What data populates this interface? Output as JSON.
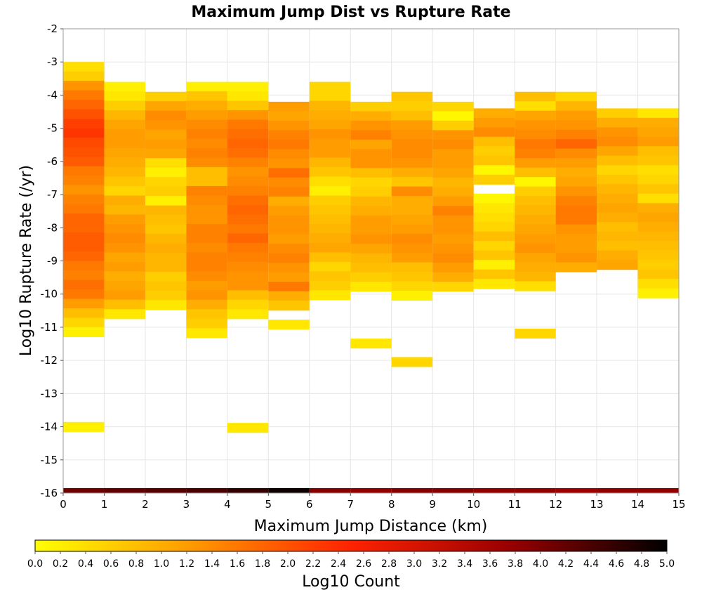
{
  "chart_data": {
    "type": "heatmap",
    "title": "Maximum Jump Dist vs Rupture Rate",
    "xlabel": "Maximum Jump Distance (km)",
    "ylabel": "Log10 Rupture Rate (/yr)",
    "xlim": [
      0,
      15
    ],
    "ylim": [
      -16,
      -2
    ],
    "x_ticks": [
      "0",
      "1",
      "2",
      "3",
      "4",
      "5",
      "6",
      "7",
      "8",
      "9",
      "10",
      "11",
      "12",
      "13",
      "14",
      "15"
    ],
    "y_ticks": [
      "-2",
      "-3",
      "-4",
      "-5",
      "-6",
      "-7",
      "-8",
      "-9",
      "-10",
      "-11",
      "-12",
      "-13",
      "-14",
      "-15",
      "-16"
    ],
    "x_bin_width": 1,
    "y_bin_height": 0.2857,
    "grid": true,
    "colorbar": {
      "label": "Log10 Count",
      "min": 0.0,
      "max": 5.0,
      "ticks": [
        "0.0",
        "0.2",
        "0.4",
        "0.6",
        "0.8",
        "1.0",
        "1.2",
        "1.4",
        "1.6",
        "1.8",
        "2.0",
        "2.2",
        "2.4",
        "2.6",
        "2.8",
        "3.0",
        "3.2",
        "3.4",
        "3.6",
        "3.8",
        "4.0",
        "4.2",
        "4.4",
        "4.6",
        "4.8",
        "5.0"
      ],
      "stops": [
        "#ffff00",
        "#ff9900",
        "#ff2200",
        "#990000",
        "#000000"
      ]
    },
    "columns": [
      {
        "x": 0,
        "y_top": -3.0,
        "values": [
          0.4,
          0.6,
          1.3,
          1.6,
          1.8,
          2.0,
          2.2,
          2.3,
          2.1,
          2.0,
          1.9,
          1.6,
          1.5,
          1.3,
          1.5,
          1.6,
          1.8,
          1.8,
          1.9,
          1.9,
          1.8,
          1.6,
          1.5,
          1.7,
          1.6,
          1.2,
          0.8,
          0.5,
          0.2,
          null,
          null,
          null,
          null,
          null,
          null,
          null,
          null,
          null,
          0.2
        ]
      },
      {
        "x": 1,
        "y_top": -3.6,
        "values": [
          0.2,
          0.3,
          0.6,
          0.9,
          1.1,
          1.2,
          1.2,
          1.1,
          1.0,
          0.9,
          0.7,
          0.5,
          1.0,
          0.9,
          1.2,
          1.3,
          1.4,
          1.3,
          1.1,
          1.2,
          1.0,
          1.1,
          1.2,
          0.8,
          0.3
        ]
      },
      {
        "x": 2,
        "y_top": -3.9,
        "values": [
          0.6,
          1.1,
          1.4,
          1.3,
          1.1,
          1.2,
          1.1,
          0.4,
          0.2,
          0.5,
          0.6,
          0.2,
          0.9,
          0.8,
          0.7,
          0.9,
          1.0,
          0.9,
          0.9,
          0.6,
          0.7,
          0.6,
          0.3
        ]
      },
      {
        "x": 3,
        "y_top": -3.6,
        "values": [
          0.2,
          0.7,
          1.0,
          1.2,
          1.4,
          1.5,
          1.4,
          1.5,
          1.4,
          0.8,
          0.8,
          1.5,
          1.4,
          1.3,
          1.3,
          1.5,
          1.5,
          1.4,
          1.5,
          1.5,
          1.4,
          1.2,
          1.3,
          1.0,
          0.7,
          0.6,
          0.3
        ]
      },
      {
        "x": 4,
        "y_top": -3.6,
        "values": [
          0.2,
          0.3,
          0.7,
          1.3,
          1.6,
          1.7,
          1.8,
          1.7,
          1.5,
          1.3,
          1.4,
          1.5,
          1.7,
          1.8,
          1.7,
          1.6,
          1.8,
          1.6,
          1.5,
          1.4,
          1.3,
          1.3,
          0.8,
          0.5,
          0.3,
          null,
          null,
          null,
          null,
          null,
          null,
          null,
          null,
          null,
          null,
          null,
          0.3
        ]
      },
      {
        "x": 5,
        "y_top": -4.2,
        "values": [
          1.2,
          1.1,
          1.3,
          1.5,
          1.6,
          1.4,
          1.3,
          1.7,
          1.4,
          1.5,
          1.0,
          1.2,
          1.3,
          1.3,
          1.2,
          1.4,
          1.5,
          1.3,
          1.2,
          1.6,
          1.0,
          0.7,
          null,
          0.3
        ]
      },
      {
        "x": 6,
        "y_top": -3.6,
        "values": [
          0.5,
          0.5,
          0.9,
          1.0,
          1.1,
          1.3,
          1.2,
          1.2,
          0.9,
          0.7,
          0.4,
          0.2,
          0.6,
          0.7,
          0.8,
          0.9,
          1.0,
          1.1,
          0.8,
          0.5,
          0.7,
          0.6,
          0.3
        ]
      },
      {
        "x": 7,
        "y_top": -4.2,
        "values": [
          0.6,
          1.0,
          1.3,
          1.5,
          1.1,
          1.3,
          1.3,
          0.8,
          0.5,
          0.6,
          0.9,
          1.0,
          1.2,
          1.2,
          1.3,
          1.1,
          0.9,
          0.8,
          0.6,
          0.3,
          null,
          null,
          null,
          null,
          null,
          0.3
        ]
      },
      {
        "x": 8,
        "y_top": -3.9,
        "values": [
          0.7,
          0.6,
          0.8,
          1.2,
          1.3,
          1.4,
          1.4,
          1.3,
          1.0,
          0.7,
          1.4,
          1.0,
          1.0,
          1.1,
          1.2,
          1.4,
          1.3,
          1.2,
          0.8,
          0.7,
          0.5,
          0.2,
          null,
          null,
          null,
          null,
          null,
          null,
          0.5
        ]
      },
      {
        "x": 9,
        "y_top": -4.2,
        "values": [
          0.5,
          0.1,
          0.6,
          1.3,
          1.4,
          1.2,
          1.2,
          1.1,
          0.9,
          1.0,
          1.2,
          1.5,
          1.3,
          1.3,
          1.2,
          1.3,
          1.4,
          1.2,
          1.0,
          0.5
        ]
      },
      {
        "x": 10,
        "y_top": -4.4,
        "values": [
          1.0,
          1.2,
          1.4,
          0.8,
          0.6,
          0.7,
          0.1,
          0.6,
          null,
          0.1,
          0.3,
          0.4,
          0.5,
          0.8,
          0.5,
          0.7,
          0.2,
          0.7,
          0.3
        ]
      },
      {
        "x": 11,
        "y_top": -3.9,
        "values": [
          0.8,
          0.4,
          1.1,
          1.3,
          1.4,
          1.6,
          1.5,
          1.2,
          0.8,
          0.1,
          0.6,
          0.8,
          0.9,
          1.0,
          1.1,
          1.2,
          1.3,
          1.1,
          1.0,
          0.9,
          0.4,
          null,
          null,
          null,
          null,
          0.5
        ]
      },
      {
        "x": 12,
        "y_top": -3.9,
        "values": [
          0.5,
          0.9,
          1.2,
          1.3,
          1.5,
          1.8,
          1.4,
          1.2,
          1.0,
          1.1,
          1.3,
          1.5,
          1.6,
          1.6,
          1.3,
          1.2,
          1.2,
          1.3,
          1.0
        ]
      },
      {
        "x": 13,
        "y_top": -4.4,
        "values": [
          0.6,
          1.0,
          1.3,
          1.4,
          1.1,
          0.8,
          0.5,
          0.7,
          0.9,
          1.0,
          1.1,
          1.0,
          0.8,
          0.9,
          0.8,
          1.0,
          1.1
        ]
      },
      {
        "x": 14,
        "y_top": -4.4,
        "values": [
          0.3,
          1.0,
          1.1,
          1.2,
          0.8,
          0.7,
          0.4,
          0.5,
          0.7,
          0.4,
          1.0,
          1.1,
          1.0,
          0.9,
          0.8,
          0.7,
          0.6,
          0.7,
          0.4,
          0.2
        ]
      }
    ],
    "bottom_row": {
      "y": -16,
      "height": 0.15,
      "values": [
        4.1,
        4.2,
        4.3,
        4.4,
        4.6,
        4.9,
        3.9,
        3.8,
        3.9,
        3.9,
        3.8,
        3.8,
        3.7,
        3.8,
        3.8
      ]
    }
  }
}
